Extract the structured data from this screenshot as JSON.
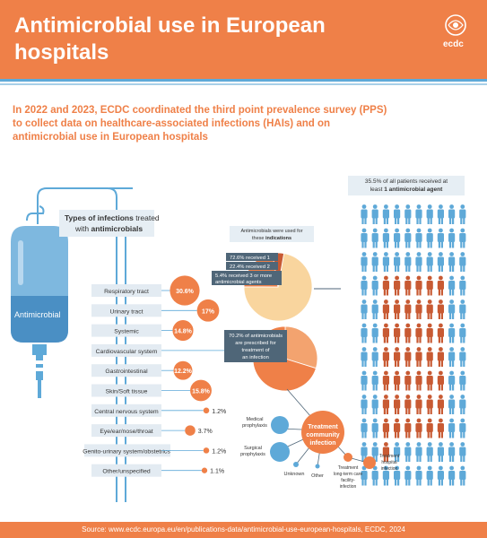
{
  "header": {
    "title": "Antimicrobial use in European hospitals",
    "logo_text": "ecdc"
  },
  "intro": "In 2022 and 2023, ECDC coordinated the third point prevalence survey (PPS) to collect data on healthcare-associated infections (HAIs) and on antimicrobial use in European hospitals",
  "infusion": {
    "bag_label": "Antimicrobial",
    "types_title_a": "Types of infections",
    "types_title_b": " treated",
    "types_title_c": "with ",
    "types_title_d": "antimicrobials"
  },
  "infection_types": [
    {
      "name": "Respiratory tract",
      "pct": "30.6%",
      "value": 30.6
    },
    {
      "name": "Urinary tract",
      "pct": "17%",
      "value": 17
    },
    {
      "name": "Systemic",
      "pct": "14.8%",
      "value": 14.8
    },
    {
      "name": "Cardiovascular system",
      "pct": "1.3%",
      "value": 1.3
    },
    {
      "name": "Gastrointestinal",
      "pct": "12.2%",
      "value": 12.2
    },
    {
      "name": "Skin/Soft tissue",
      "pct": "15.8%",
      "value": 15.8
    },
    {
      "name": "Central nervous system",
      "pct": "1.2%",
      "value": 1.2
    },
    {
      "name": "Eye/ear/nose/throat",
      "pct": "3.7%",
      "value": 3.7
    },
    {
      "name": "Genito-urinary system/obstetrics",
      "pct": "1.2%",
      "value": 1.2
    },
    {
      "name": "Other/unspecified",
      "pct": "1.1%",
      "value": 1.1
    }
  ],
  "patients": {
    "caption_a": "35.5% of all patients received at",
    "caption_b": "least ",
    "caption_c": "1 antimicrobial agent",
    "share": 0.355
  },
  "indications": {
    "title_a": "Antimicrobials were used for",
    "title_b": "these ",
    "title_c": "indications",
    "agents_1": "72.6% received 1",
    "agents_2": "22.4% received 2",
    "agents_3a": "5.4% received 3 or more",
    "agents_3b": "antimicrobial agents",
    "agents_values": [
      72.6,
      22.4,
      5.4
    ],
    "community_a": "70.2% of antimicrobials",
    "community_b": "are prescribed for",
    "community_c": "treatment of",
    "community_d": "an infection",
    "community_value": 70.2
  },
  "bubbles": {
    "center_a": "Treatment",
    "center_b": "community",
    "center_c": "infection",
    "medical_a": "Medical",
    "medical_b": "prophylaxis",
    "surgical_a": "Surgical",
    "surgical_b": "prophylaxis",
    "unknown": "Unknown",
    "other": "Other",
    "ltcf_a": "Treatment",
    "ltcf_b": "long-term care",
    "ltcf_c": "facility-",
    "ltcf_d": "infection",
    "hospital_a": "Treatment",
    "hospital_b": "hospital",
    "hospital_c": "infection"
  },
  "footer": "Source: www.ecdc.europa.eu/en/publications-data/antimicrobial-use-european-hospitals, ECDC, 2024",
  "colors": {
    "orange": "#ef8048",
    "blue": "#5ea9d8",
    "light_orange": "#f9d59e",
    "dark_blue_gray": "#4f6678",
    "red": "#c85a33"
  }
}
